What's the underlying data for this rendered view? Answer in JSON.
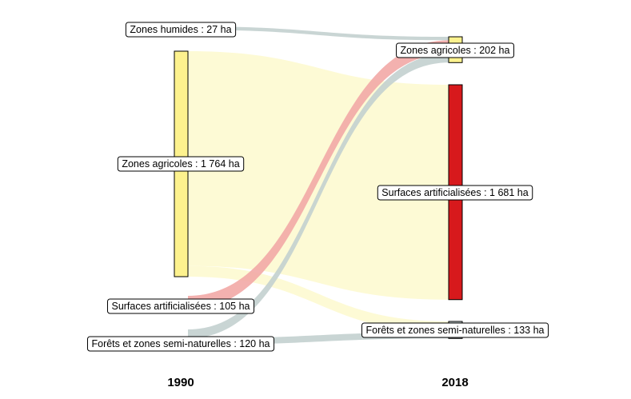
{
  "chart_data": {
    "type": "sankey",
    "title": "",
    "columns": [
      {
        "label": "1990",
        "nodes": [
          {
            "id": "h1990",
            "label": "Zones humides : 27 ha",
            "value": 27,
            "color": "#c3d0cf",
            "bar": false
          },
          {
            "id": "a1990",
            "label": "Zones agricoles : 1 764 ha",
            "value": 1764,
            "color": "#fdf28e",
            "bar": true
          },
          {
            "id": "s1990",
            "label": "Surfaces artificialisées : 105 ha",
            "value": 105,
            "color": "#f2a8a6",
            "bar": false
          },
          {
            "id": "f1990",
            "label": "Forêts et zones semi-naturelles : 120 ha",
            "value": 120,
            "color": "#c3d0cf",
            "bar": false
          }
        ]
      },
      {
        "label": "2018",
        "nodes": [
          {
            "id": "a2018",
            "label": "Zones agricoles : 202 ha",
            "value": 202,
            "color": "#fdf28e",
            "bar": true
          },
          {
            "id": "s2018",
            "label": "Surfaces artificialisées : 1 681 ha",
            "value": 1681,
            "color": "#d7191c",
            "bar": true
          },
          {
            "id": "f2018",
            "label": "Forêts et zones semi-naturelles : 133 ha",
            "value": 133,
            "color": "#c3d0cf",
            "bar": true
          }
        ]
      }
    ],
    "flows": [
      {
        "from": "h1990",
        "to": "a2018",
        "value": 27,
        "color": "#c3d0cf"
      },
      {
        "from": "a1990",
        "to": "s2018",
        "value": 1681,
        "color": "#fdfad0"
      },
      {
        "from": "a1990",
        "to": "f2018",
        "value": 83,
        "color": "#fdfad0"
      },
      {
        "from": "s1990",
        "to": "a2018",
        "value": 105,
        "color": "#f2a8a6"
      },
      {
        "from": "f1990",
        "to": "a2018",
        "value": 70,
        "color": "#c3d0cf"
      },
      {
        "from": "f1990",
        "to": "f2018",
        "value": 50,
        "color": "#c3d0cf"
      }
    ]
  }
}
